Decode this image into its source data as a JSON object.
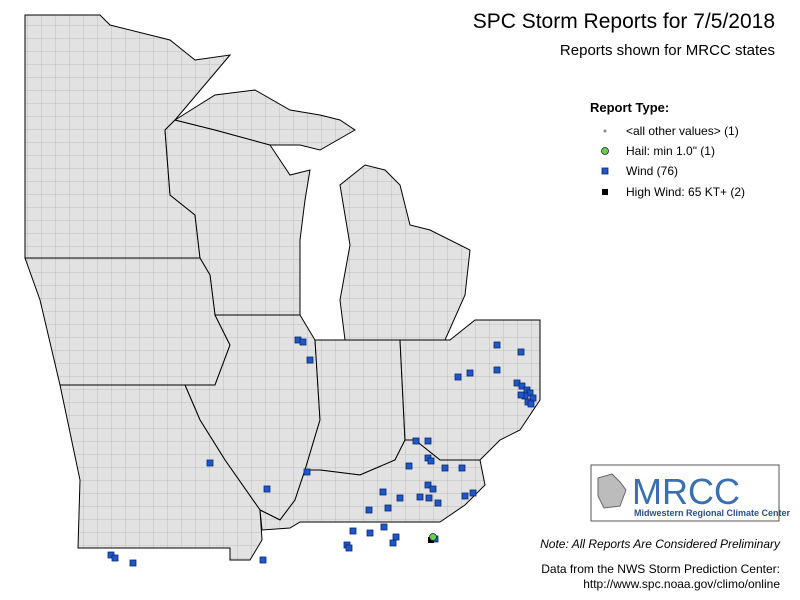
{
  "header": {
    "title": "SPC Storm Reports for 7/5/2018",
    "subtitle": "Reports shown for MRCC states"
  },
  "legend": {
    "title": "Report Type:",
    "items": [
      "<all other values> (1)",
      "Hail: min 1.0\" (1)",
      "Wind (76)",
      "High Wind: 65 KT+ (2)"
    ]
  },
  "logo": {
    "name": "MRCC",
    "caption": "Midwestern Regional Climate Center"
  },
  "notes": {
    "preliminary": "Note: All Reports Are Considered Preliminary",
    "source": "Data from the NWS Storm Prediction Center:",
    "url": "http://www.spc.noaa.gov/climo/online"
  }
}
